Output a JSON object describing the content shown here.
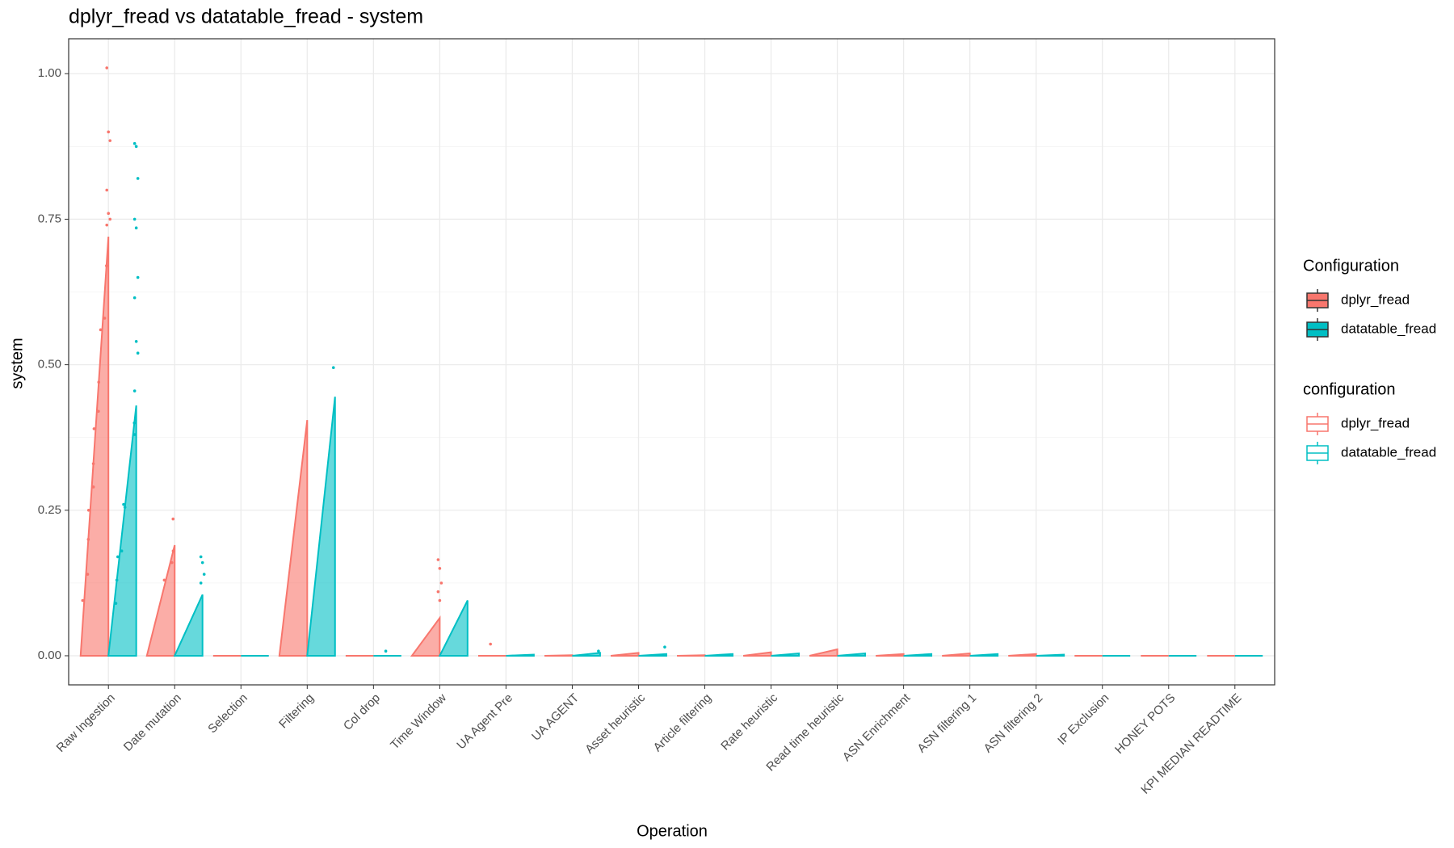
{
  "chart_data": {
    "type": "ramp-box",
    "title": "dplyr_fread vs datatable_fread - system",
    "x_label": "Operation",
    "y_label": "system",
    "categories": [
      "Raw Ingestion",
      "Date mutation",
      "Selection",
      "Filtering",
      "Col drop",
      "Time Window",
      "UA Agent Pre",
      "UA AGENT",
      "Asset heuristic",
      "Article filtering",
      "Rate heuristic",
      "Read time heuristic",
      "ASN Enrichment",
      "ASN filtering 1",
      "ASN filtering 2",
      "IP Exclusion",
      "HONEY POTS",
      "KPI MEDIAN READTIME"
    ],
    "series": [
      {
        "name": "dplyr_fread",
        "color": "#f8766d",
        "values": [
          0.72,
          0.19,
          0,
          0.405,
          0,
          0.065,
          0,
          0.001,
          0.005,
          0.001,
          0.006,
          0.011,
          0.003,
          0.004,
          0.003,
          0,
          0,
          0
        ],
        "outliers": [
          [
            1.01,
            0.9,
            0.885,
            0.8,
            0.76,
            0.75,
            0.74,
            0.67,
            0.58,
            0.56,
            0.47,
            0.42,
            0.39,
            0.33,
            0.29,
            0.25,
            0.2,
            0.14,
            0.095
          ],
          [
            0.235,
            0.18,
            0.16,
            0.13
          ],
          [],
          [],
          [],
          [
            0.165,
            0.15,
            0.125,
            0.11,
            0.095
          ],
          [
            0.02
          ],
          [],
          [],
          [],
          [],
          [],
          [],
          [],
          [],
          [],
          [],
          []
        ]
      },
      {
        "name": "datatable_fread",
        "color": "#00bfc4",
        "values": [
          0.43,
          0.105,
          0,
          0.445,
          0,
          0.095,
          0.002,
          0.005,
          0.003,
          0.003,
          0.004,
          0.004,
          0.003,
          0.003,
          0.002,
          0,
          0,
          0
        ],
        "outliers": [
          [
            0.88,
            0.875,
            0.82,
            0.75,
            0.735,
            0.65,
            0.615,
            0.54,
            0.52,
            0.455,
            0.4,
            0.38,
            0.26,
            0.255,
            0.18,
            0.17,
            0.13,
            0.09
          ],
          [
            0.17,
            0.16,
            0.14,
            0.125
          ],
          [],
          [
            0.495
          ],
          [
            0.008
          ],
          [],
          [],
          [
            0.008
          ],
          [
            0.015
          ],
          [],
          [],
          [],
          [],
          [],
          [],
          [],
          [],
          []
        ]
      }
    ],
    "ylim": [
      -0.05,
      1.06
    ],
    "yticks": [
      {
        "value": 0,
        "label": "0.00"
      },
      {
        "value": 0.25,
        "label": "0.25"
      },
      {
        "value": 0.5,
        "label": "0.50"
      },
      {
        "value": 0.75,
        "label": "0.75"
      },
      {
        "value": 1,
        "label": "1.00"
      }
    ],
    "grid": true,
    "legends": [
      {
        "title": "Configuration",
        "style": "filled"
      },
      {
        "title": "configuration",
        "style": "outline"
      }
    ]
  }
}
